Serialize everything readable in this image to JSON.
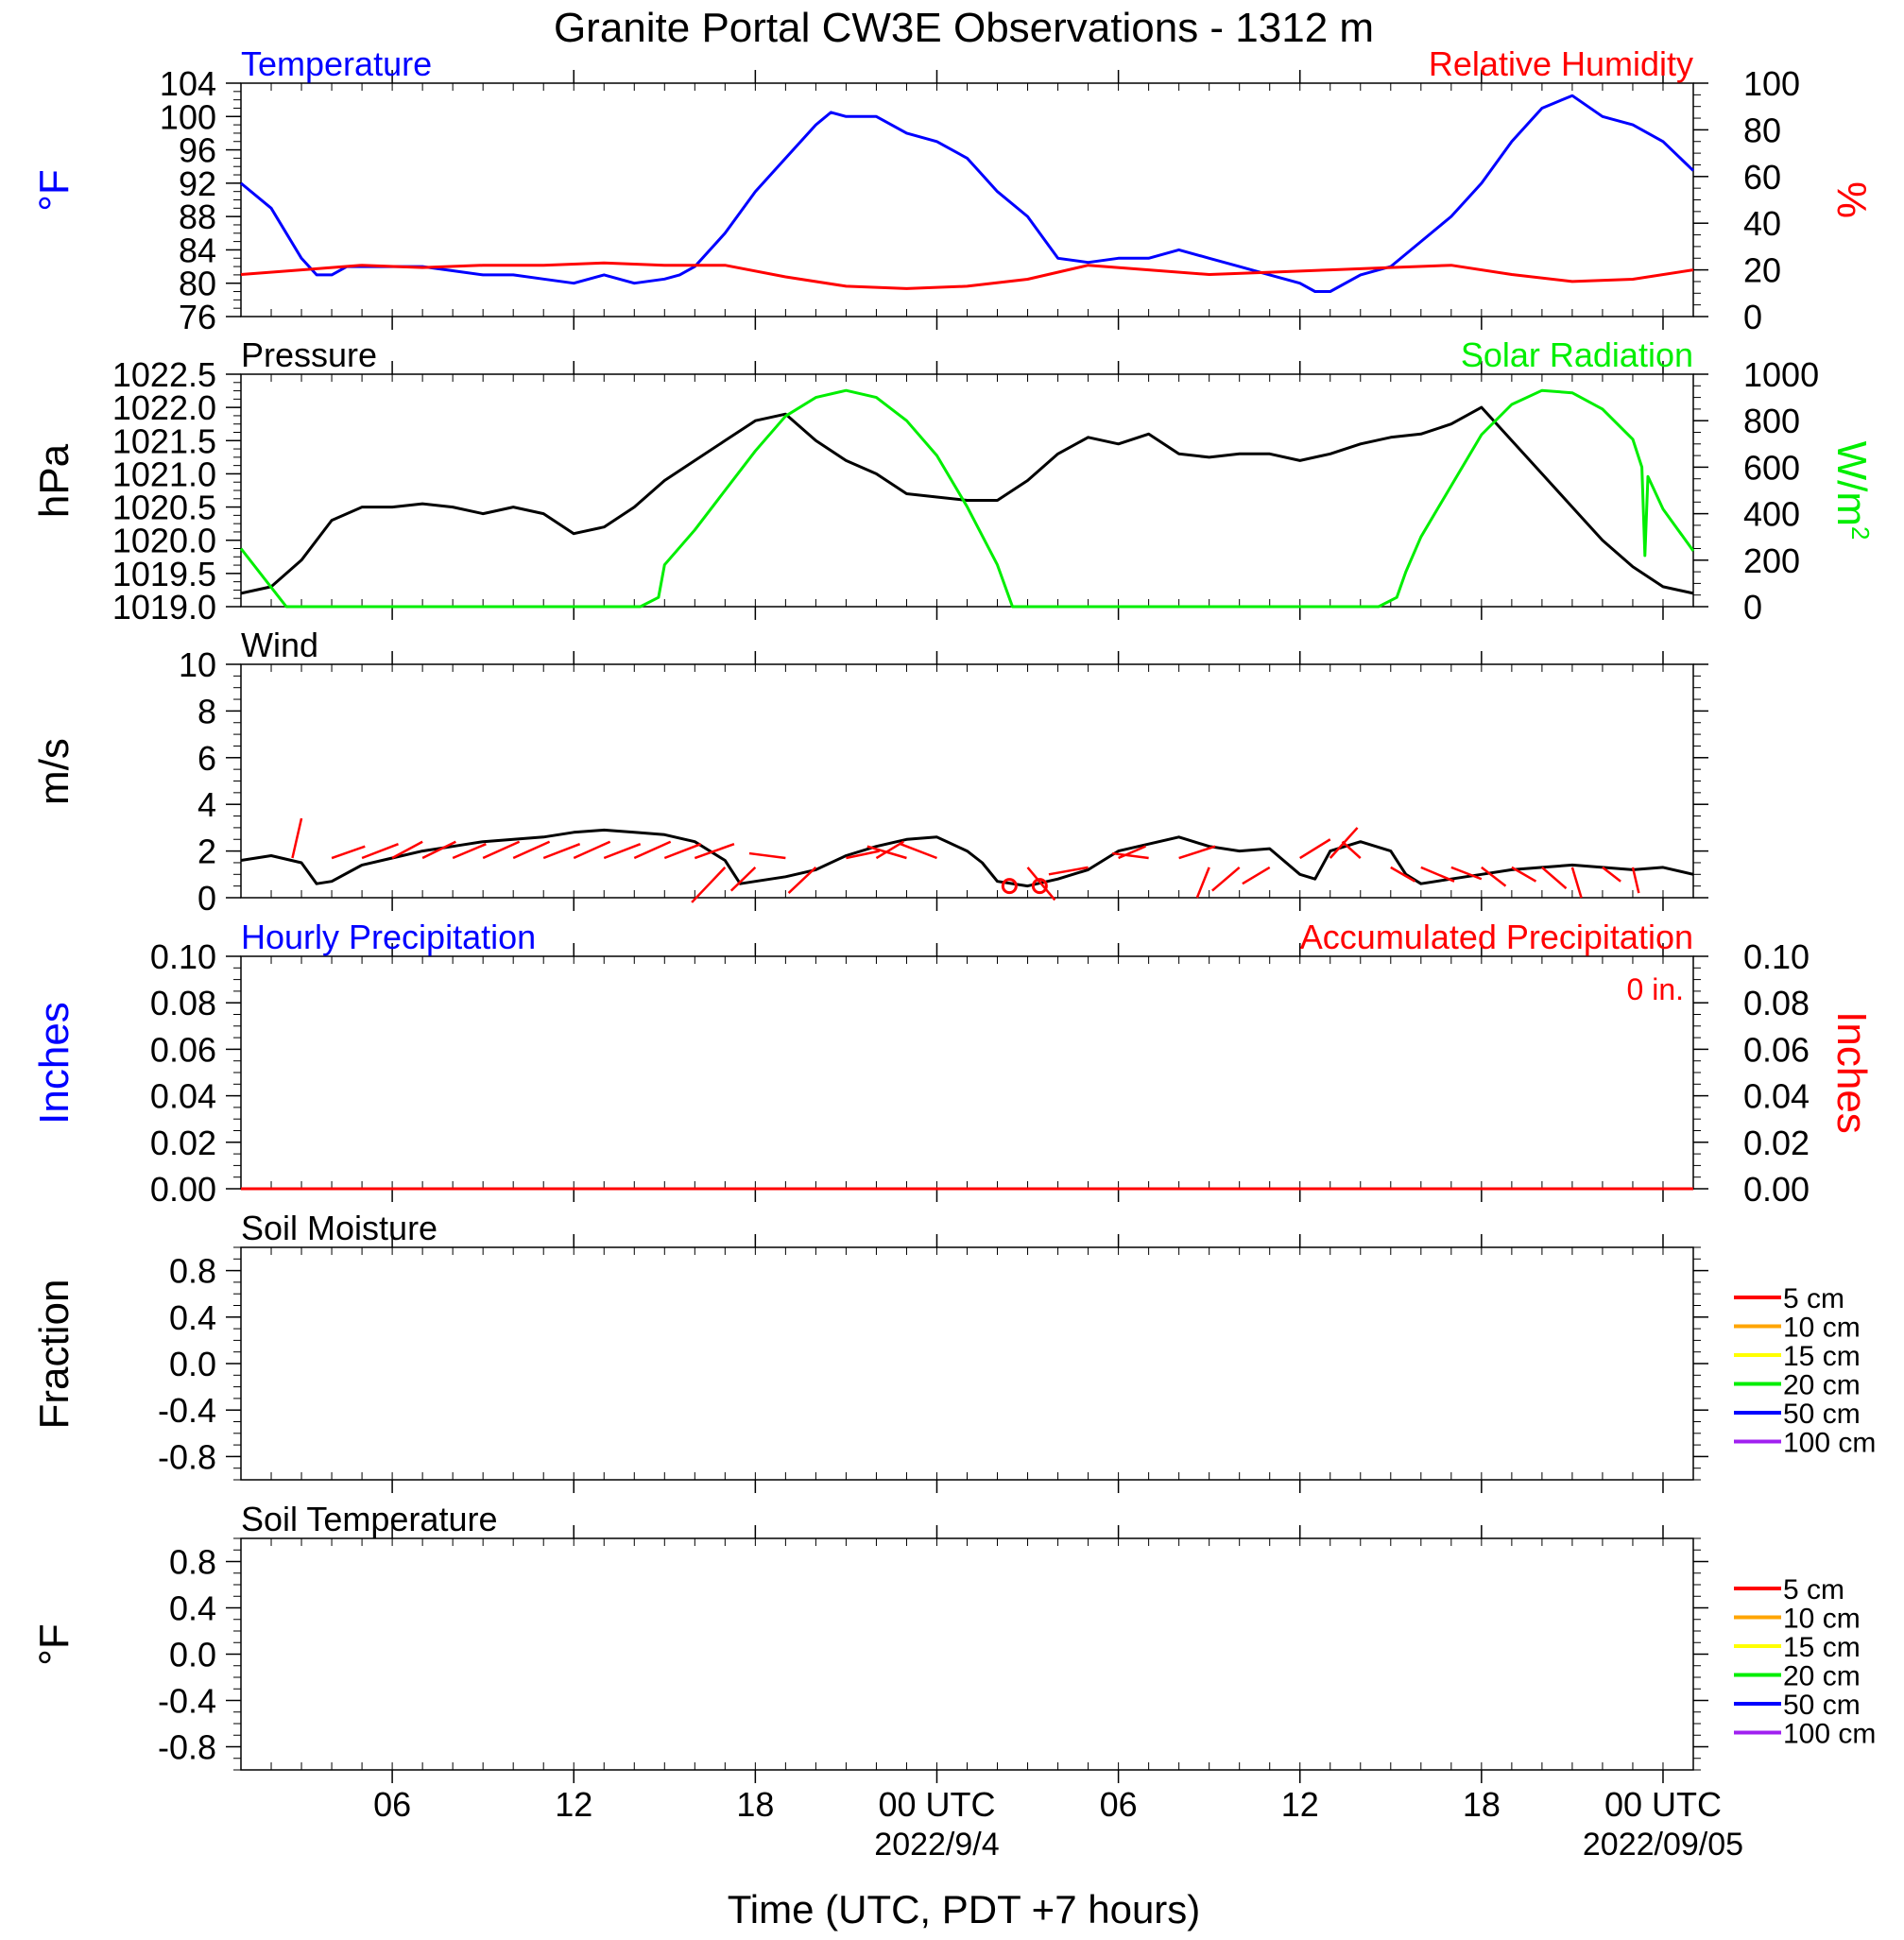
{
  "page": {
    "title": "Granite Portal CW3E Observations - 1312 m",
    "xlabel": "Time (UTC, PDT +7 hours)"
  },
  "x_axis": {
    "range_hours": [
      0,
      48
    ],
    "ticks": [
      {
        "h": 5,
        "label": "06",
        "sub": ""
      },
      {
        "h": 11,
        "label": "12",
        "sub": ""
      },
      {
        "h": 17,
        "label": "18",
        "sub": ""
      },
      {
        "h": 23,
        "label": "00 UTC",
        "sub": "2022/9/4"
      },
      {
        "h": 29,
        "label": "06",
        "sub": ""
      },
      {
        "h": 35,
        "label": "12",
        "sub": ""
      },
      {
        "h": 41,
        "label": "18",
        "sub": ""
      },
      {
        "h": 47,
        "label": "00 UTC",
        "sub": "2022/09/05"
      }
    ]
  },
  "chart_data": [
    {
      "type": "line",
      "left_label": "Temperature",
      "right_label": "Relative Humidity",
      "ylabel_left": "°F",
      "ylabel_right": "%",
      "colors": {
        "left": "#0000ff",
        "right": "#ff0000"
      },
      "ylim_left": [
        76,
        104
      ],
      "ylim_right": [
        0,
        100
      ],
      "yticks_left": [
        76,
        80,
        84,
        88,
        92,
        96,
        100,
        104
      ],
      "yticks_right": [
        0,
        20,
        40,
        60,
        80,
        100
      ],
      "series": [
        {
          "name": "Temperature",
          "axis": "left",
          "x": [
            0,
            1,
            1.5,
            2,
            2.5,
            3,
            3.5,
            4,
            5,
            6,
            7,
            8,
            9,
            10,
            11,
            12,
            13,
            14,
            14.5,
            15,
            16,
            17,
            18,
            19,
            19.5,
            20,
            21,
            22,
            23,
            24,
            24.5,
            25,
            26,
            27,
            28,
            29,
            30,
            31,
            32,
            33,
            34,
            35,
            35.5,
            36,
            37,
            38,
            39,
            40,
            41,
            42,
            42.5,
            43,
            44,
            45,
            46,
            47,
            48
          ],
          "y": [
            92,
            89,
            86,
            83,
            81,
            81,
            82,
            82,
            82,
            82,
            81.5,
            81,
            81,
            80.5,
            80,
            81,
            80,
            80.5,
            81,
            82,
            86,
            91,
            95,
            99,
            100.5,
            100,
            100,
            98,
            97,
            95,
            93,
            91,
            88,
            83,
            82.5,
            83,
            83,
            84,
            83,
            82,
            81,
            80,
            79,
            79,
            81,
            82,
            85,
            88,
            92,
            97,
            99,
            101,
            102.5,
            100,
            99,
            97,
            93.5
          ]
        },
        {
          "name": "Relative Humidity",
          "axis": "right",
          "x": [
            0,
            2,
            4,
            6,
            8,
            10,
            12,
            14,
            16,
            18,
            20,
            22,
            24,
            26,
            28,
            30,
            32,
            34,
            36,
            38,
            40,
            42,
            44,
            46,
            48
          ],
          "y": [
            18,
            20,
            22,
            21,
            22,
            22,
            23,
            22,
            22,
            17,
            13,
            12,
            13,
            16,
            22,
            20,
            18,
            19,
            20,
            21,
            22,
            18,
            15,
            16,
            20
          ]
        }
      ]
    },
    {
      "type": "line",
      "left_label": "Pressure",
      "right_label": "Solar Radiation",
      "ylabel_left": "hPa",
      "ylabel_right": "W/m",
      "ylabel_right_sup": "2",
      "colors": {
        "left": "#000000",
        "right": "#00ee00"
      },
      "ylim_left": [
        1019.0,
        1022.5
      ],
      "ylim_right": [
        0,
        1000
      ],
      "yticks_left": [
        1019.0,
        1019.5,
        1020.0,
        1020.5,
        1021.0,
        1021.5,
        1022.0,
        1022.5
      ],
      "yticks_right": [
        0,
        200,
        400,
        600,
        800,
        1000
      ],
      "series": [
        {
          "name": "Pressure",
          "axis": "left",
          "x": [
            0,
            1,
            2,
            3,
            4,
            5,
            6,
            7,
            8,
            9,
            10,
            11,
            12,
            13,
            14,
            15,
            16,
            17,
            18,
            19,
            20,
            21,
            22,
            23,
            24,
            25,
            26,
            27,
            28,
            29,
            30,
            31,
            32,
            33,
            34,
            35,
            36,
            37,
            38,
            39,
            40,
            41,
            42,
            43,
            44,
            45,
            46,
            47,
            48
          ],
          "y": [
            1019.2,
            1019.3,
            1019.7,
            1020.3,
            1020.5,
            1020.5,
            1020.55,
            1020.5,
            1020.4,
            1020.5,
            1020.4,
            1020.1,
            1020.2,
            1020.5,
            1020.9,
            1021.2,
            1021.5,
            1021.8,
            1021.9,
            1021.5,
            1021.2,
            1021.0,
            1020.7,
            1020.65,
            1020.6,
            1020.6,
            1020.9,
            1021.3,
            1021.55,
            1021.45,
            1021.6,
            1021.3,
            1021.25,
            1021.3,
            1021.3,
            1021.2,
            1021.3,
            1021.45,
            1021.55,
            1021.6,
            1021.75,
            1022.0,
            1021.5,
            1021.0,
            1020.5,
            1020.0,
            1019.6,
            1019.3,
            1019.2
          ]
        },
        {
          "name": "Solar Radiation",
          "axis": "right",
          "x": [
            0,
            1.5,
            13.2,
            13.8,
            14,
            15,
            16,
            17,
            18,
            19,
            20,
            21,
            22,
            23,
            24,
            25,
            25.5,
            37.6,
            38.2,
            38.5,
            39,
            40,
            41,
            42,
            43,
            44,
            45,
            46,
            46.3,
            46.4,
            46.5,
            47,
            48
          ],
          "y": [
            250,
            0,
            0,
            40,
            180,
            330,
            500,
            670,
            820,
            900,
            930,
            900,
            800,
            650,
            430,
            180,
            0,
            0,
            40,
            150,
            300,
            520,
            740,
            870,
            930,
            920,
            850,
            720,
            600,
            220,
            560,
            420,
            240
          ]
        }
      ]
    },
    {
      "type": "line",
      "left_label": "Wind",
      "ylabel_left": "m/s",
      "colors": {
        "left": "#000000",
        "barbs": "#ff0000"
      },
      "ylim_left": [
        0,
        10
      ],
      "yticks_left": [
        0,
        2,
        4,
        6,
        8,
        10
      ],
      "series": [
        {
          "name": "Wind",
          "axis": "left",
          "x": [
            0,
            1,
            2,
            2.5,
            3,
            4,
            5,
            6,
            7,
            8,
            9,
            10,
            11,
            12,
            13,
            14,
            15,
            16,
            16.5,
            17,
            18,
            19,
            20,
            21,
            22,
            23,
            24,
            24.5,
            25,
            26,
            27,
            28,
            29,
            30,
            31,
            32,
            33,
            34,
            35,
            35.5,
            36,
            37,
            38,
            38.5,
            39,
            40,
            41,
            42,
            43,
            44,
            45,
            46,
            47,
            48
          ],
          "y": [
            1.6,
            1.8,
            1.5,
            0.6,
            0.7,
            1.4,
            1.7,
            2.0,
            2.2,
            2.4,
            2.5,
            2.6,
            2.8,
            2.9,
            2.8,
            2.7,
            2.4,
            1.6,
            0.6,
            0.7,
            0.9,
            1.2,
            1.8,
            2.2,
            2.5,
            2.6,
            2.0,
            1.5,
            0.7,
            0.5,
            0.8,
            1.2,
            2.0,
            2.3,
            2.6,
            2.2,
            2.0,
            2.1,
            1.0,
            0.8,
            2.0,
            2.4,
            2.0,
            1.0,
            0.6,
            0.8,
            1.0,
            1.2,
            1.3,
            1.4,
            1.3,
            1.2,
            1.3,
            1.0
          ]
        }
      ],
      "barbs": [
        {
          "x": 1.7,
          "dx": 0.3,
          "dy": 1.7
        },
        {
          "x": 3,
          "dx": 1.1,
          "dy": 0.5
        },
        {
          "x": 4,
          "dx": 1.2,
          "dy": 0.6
        },
        {
          "x": 5,
          "dx": 1.0,
          "dy": 0.7
        },
        {
          "x": 6,
          "dx": 1.1,
          "dy": 0.7
        },
        {
          "x": 7,
          "dx": 1.1,
          "dy": 0.6
        },
        {
          "x": 8,
          "dx": 1.2,
          "dy": 0.7
        },
        {
          "x": 9,
          "dx": 1.2,
          "dy": 0.7
        },
        {
          "x": 10,
          "dx": 1.2,
          "dy": 0.6
        },
        {
          "x": 11,
          "dx": 1.2,
          "dy": 0.7
        },
        {
          "x": 12,
          "dx": 1.2,
          "dy": 0.6
        },
        {
          "x": 13,
          "dx": 1.2,
          "dy": 0.7
        },
        {
          "x": 14,
          "dx": 1.2,
          "dy": 0.6
        },
        {
          "x": 15,
          "dx": 1.3,
          "dy": 0.6
        },
        {
          "x": 16,
          "dx": -1.1,
          "dy": -1.5
        },
        {
          "x": 17,
          "dx": -0.8,
          "dy": -1.0
        },
        {
          "x": 18,
          "dx": -1.2,
          "dy": 0.2
        },
        {
          "x": 19,
          "dx": -0.9,
          "dy": -1.1
        },
        {
          "x": 20,
          "dx": 1.1,
          "dy": 0.3
        },
        {
          "x": 21,
          "dx": 0.9,
          "dy": 0.7
        },
        {
          "x": 22,
          "dx": -1.3,
          "dy": 0.5
        },
        {
          "x": 23,
          "dx": -1.2,
          "dy": 0.6
        },
        {
          "x": 26,
          "dx": 0.9,
          "dy": -1.4
        },
        {
          "x": 28,
          "dx": -1.3,
          "dy": -0.3
        },
        {
          "x": 29,
          "dx": 0.9,
          "dy": 0.5
        },
        {
          "x": 30,
          "dx": -1.2,
          "dy": 0.2
        },
        {
          "x": 31,
          "dx": 1.2,
          "dy": 0.5
        },
        {
          "x": 32,
          "dx": -0.4,
          "dy": -1.3
        },
        {
          "x": 33,
          "dx": -0.9,
          "dy": -1.0
        },
        {
          "x": 34,
          "dx": -0.9,
          "dy": -0.7
        },
        {
          "x": 35,
          "dx": 1.0,
          "dy": 0.8
        },
        {
          "x": 36,
          "dx": 0.9,
          "dy": 1.3
        },
        {
          "x": 37,
          "dx": -0.6,
          "dy": 0.7
        },
        {
          "x": 38,
          "dx": 0.8,
          "dy": -0.6
        },
        {
          "x": 39,
          "dx": 1.1,
          "dy": -0.6
        },
        {
          "x": 40,
          "dx": 1.0,
          "dy": -0.5
        },
        {
          "x": 41,
          "dx": 0.8,
          "dy": -0.8
        },
        {
          "x": 42,
          "dx": 0.8,
          "dy": -0.6
        },
        {
          "x": 43,
          "dx": 0.8,
          "dy": -0.9
        },
        {
          "x": 44,
          "dx": 0.3,
          "dy": -1.3
        },
        {
          "x": 45,
          "dx": 0.6,
          "dy": -0.6
        },
        {
          "x": 46,
          "dx": 0.2,
          "dy": -1.1
        }
      ],
      "calm_points": [
        {
          "x": 25.4,
          "y": 0.5
        },
        {
          "x": 26.4,
          "y": 0.5
        }
      ]
    },
    {
      "type": "line",
      "left_label": "Hourly Precipitation",
      "right_label": "Accumulated Precipitation",
      "annotation": "0 in.",
      "ylabel_left": "Inches",
      "ylabel_right": "Inches",
      "colors": {
        "left": "#0000ff",
        "right": "#ff0000"
      },
      "ylim_left": [
        0,
        0.1
      ],
      "ylim_right": [
        0,
        0.1
      ],
      "yticks_left": [
        0,
        0.02,
        0.04,
        0.06,
        0.08,
        0.1
      ],
      "yticks_right": [
        0,
        0.02,
        0.04,
        0.06,
        0.08,
        0.1
      ],
      "ytick_labels": [
        "0.00",
        "0.02",
        "0.04",
        "0.06",
        "0.08",
        "0.10"
      ],
      "series": [
        {
          "name": "Accumulated Precipitation",
          "axis": "right",
          "x": [
            0,
            48
          ],
          "y": [
            0,
            0
          ]
        }
      ]
    },
    {
      "type": "line",
      "left_label": "Soil Moisture",
      "ylabel_left": "Fraction",
      "ylim_left": [
        -1,
        1
      ],
      "yticks_left": [
        -0.8,
        -0.4,
        0.0,
        0.4,
        0.8
      ],
      "legend": [
        {
          "name": "5 cm",
          "color": "#ff0000"
        },
        {
          "name": "10 cm",
          "color": "#ffa500"
        },
        {
          "name": "15 cm",
          "color": "#ffff00"
        },
        {
          "name": "20 cm",
          "color": "#00ee00"
        },
        {
          "name": "50 cm",
          "color": "#0000ff"
        },
        {
          "name": "100 cm",
          "color": "#a020f0"
        }
      ]
    },
    {
      "type": "line",
      "left_label": "Soil Temperature",
      "ylabel_left": "°F",
      "ylim_left": [
        -1,
        1
      ],
      "yticks_left": [
        -0.8,
        -0.4,
        0.0,
        0.4,
        0.8
      ],
      "legend": [
        {
          "name": "5 cm",
          "color": "#ff0000"
        },
        {
          "name": "10 cm",
          "color": "#ffa500"
        },
        {
          "name": "15 cm",
          "color": "#ffff00"
        },
        {
          "name": "20 cm",
          "color": "#00ee00"
        },
        {
          "name": "50 cm",
          "color": "#0000ff"
        },
        {
          "name": "100 cm",
          "color": "#a020f0"
        }
      ]
    }
  ]
}
